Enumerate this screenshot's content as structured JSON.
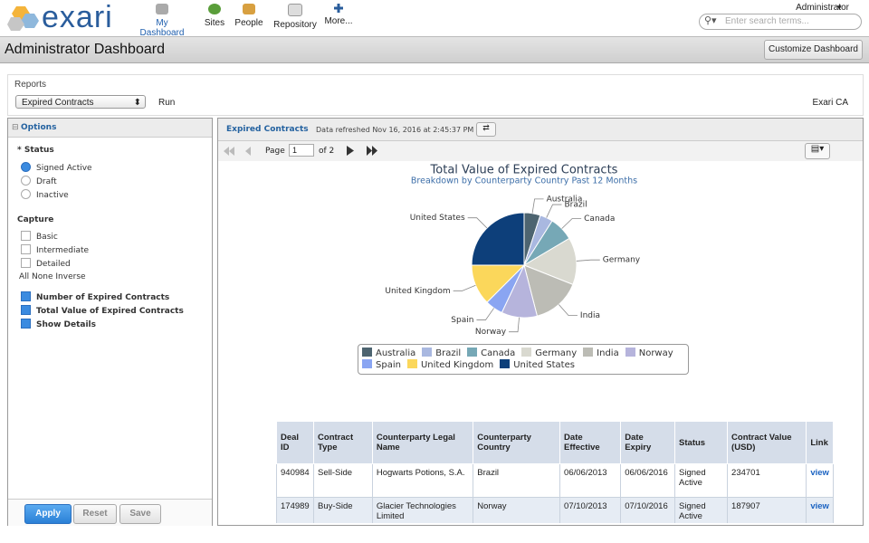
{
  "header": {
    "logo": "exari",
    "nav": [
      "My Dashboard",
      "Sites",
      "People",
      "Repository",
      "More..."
    ],
    "user": "Administrator",
    "search_placeholder": "Enter search terms..."
  },
  "title_bar": {
    "title": "Administrator Dashboard",
    "button": "Customize Dashboard"
  },
  "reports": {
    "label": "Reports",
    "selected": "Expired Contracts",
    "run": "Run",
    "site": "Exari CA"
  },
  "options": {
    "title": "Options",
    "status_label": "* Status",
    "status_options": [
      "Signed Active",
      "Draft",
      "Inactive"
    ],
    "capture_label": "Capture",
    "capture_options": [
      "Basic",
      "Intermediate",
      "Detailed"
    ],
    "capture_links": [
      "All",
      "None",
      "Inverse"
    ],
    "checked_options": [
      "Number of Expired Contracts",
      "Total Value of Expired Contracts",
      "Show Details"
    ],
    "buttons": [
      "Apply",
      "Reset",
      "Save"
    ]
  },
  "report_panel": {
    "tab": "Expired Contracts",
    "refreshed": "Data refreshed Nov 16, 2016 at 2:45:37 PM",
    "page_label": "Page",
    "page": "1",
    "of_pages": "of 2"
  },
  "chart_data": {
    "type": "pie",
    "title": "Total Value of Expired Contracts",
    "subtitle": "Breakdown by Counterparty Country Past 12 Months",
    "categories": [
      "Australia",
      "Brazil",
      "Canada",
      "Germany",
      "India",
      "Norway",
      "Spain",
      "United Kingdom",
      "United States"
    ],
    "values": [
      5,
      4,
      7.5,
      14.5,
      15,
      11,
      5.5,
      12.5,
      25
    ],
    "colors": [
      "#4d6470",
      "#a9b8e0",
      "#76a8b6",
      "#d9d9d0",
      "#bcbcb5",
      "#b6b4dc",
      "#8aa5f2",
      "#fbd75b",
      "#0d3f7a"
    ]
  },
  "table": {
    "headers": [
      "Deal ID",
      "Contract Type",
      "Counterparty Legal Name",
      "Counterparty Country",
      "Date Effective",
      "Date Expiry",
      "Status",
      "Contract Value (USD)",
      "Link"
    ],
    "rows": [
      [
        "940984",
        "Sell-Side",
        "Hogwarts Potions, S.A.",
        "Brazil",
        "06/06/2013",
        "06/06/2016",
        "Signed Active",
        "234701",
        "view"
      ],
      [
        "174989",
        "Buy-Side",
        "Glacier Technologies Limited",
        "Norway",
        "07/10/2013",
        "07/10/2016",
        "Signed Active",
        "187907",
        "view"
      ]
    ]
  }
}
